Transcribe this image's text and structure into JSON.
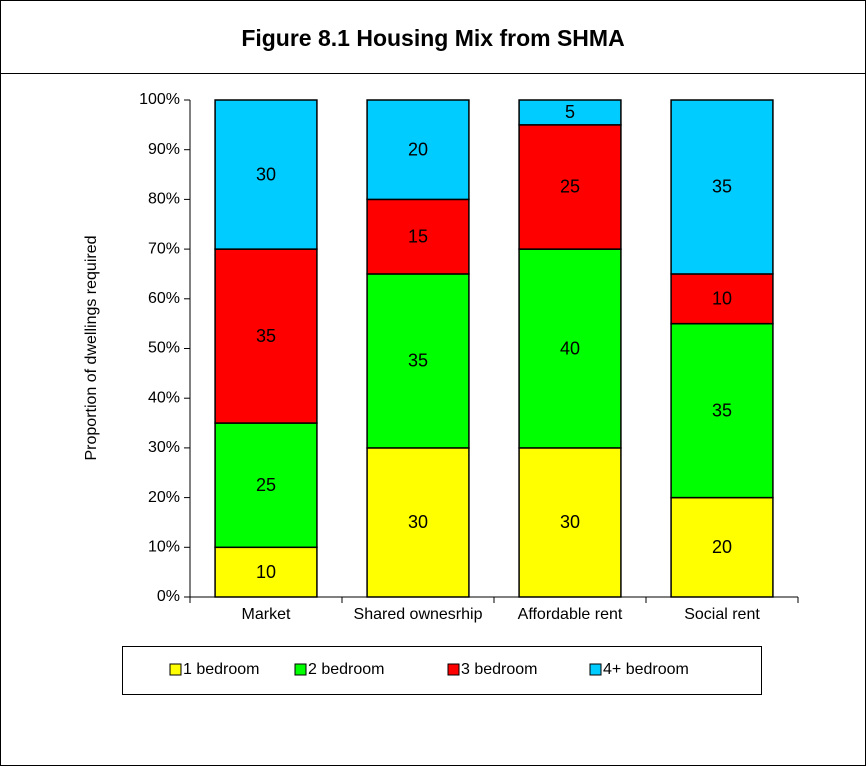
{
  "chart_data": {
    "type": "stacked_bar",
    "title": "Figure 8.1  Housing Mix from SHMA",
    "y_label": "Proportion of dwellings required",
    "categories": [
      "Market",
      "Shared ownesrhip",
      "Affordable rent",
      "Social rent"
    ],
    "series": [
      {
        "name": "1 bedroom",
        "color": "#ffff00",
        "values": [
          10,
          30,
          30,
          20
        ]
      },
      {
        "name": "2 bedroom",
        "color": "#00ff00",
        "values": [
          25,
          35,
          40,
          35
        ]
      },
      {
        "name": "3 bedroom",
        "color": "#ff0000",
        "values": [
          35,
          15,
          25,
          10
        ]
      },
      {
        "name": "4+ bedroom",
        "color": "#00ccff",
        "values": [
          30,
          20,
          5,
          35
        ]
      }
    ],
    "ylim": [
      0,
      100
    ],
    "yticks": [
      {
        "value": 0,
        "label": "0%"
      },
      {
        "value": 10,
        "label": "10%"
      },
      {
        "value": 20,
        "label": "20%"
      },
      {
        "value": 30,
        "label": "30%"
      },
      {
        "value": 40,
        "label": "40%"
      },
      {
        "value": 50,
        "label": "50%"
      },
      {
        "value": 60,
        "label": "60%"
      },
      {
        "value": 70,
        "label": "70%"
      },
      {
        "value": 80,
        "label": "80%"
      },
      {
        "value": 90,
        "label": "90%"
      },
      {
        "value": 100,
        "label": "100%"
      }
    ],
    "legend": "bottom"
  }
}
